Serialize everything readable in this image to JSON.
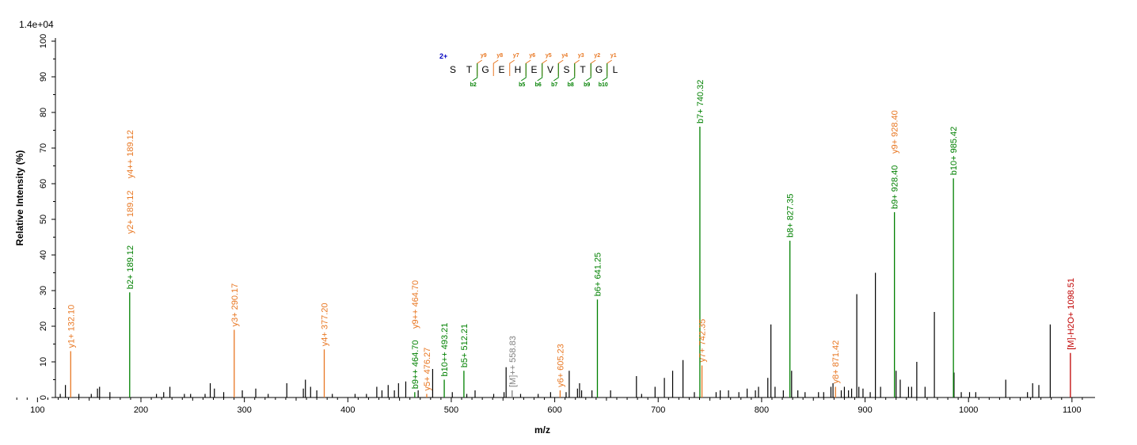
{
  "chart_data": {
    "type": "bar",
    "title": "",
    "scale_label": "1.4e+04",
    "xlabel": "m/z",
    "ylabel": "Relative   Intensity (%)",
    "xlim": [
      70,
      1120
    ],
    "ylim": [
      0,
      100
    ],
    "x_ticks": [
      100,
      200,
      300,
      400,
      500,
      600,
      700,
      800,
      900,
      1000,
      1100
    ],
    "y_ticks": [
      0,
      10,
      20,
      30,
      40,
      50,
      60,
      70,
      80,
      90,
      100
    ],
    "colors": {
      "b_ion": "#008000",
      "y_ion": "#e87722",
      "precursor": "#808080",
      "neutral_loss": "#c00000",
      "unassigned": "#000000",
      "charge": "#0000c0"
    },
    "annotated_peaks": [
      {
        "mz": 132.1,
        "intensity": 13,
        "label": "y1+ 132.10",
        "type": "y"
      },
      {
        "mz": 189.12,
        "intensity": 29.5,
        "label": "b2+ 189.12",
        "label2": "y2+ 189.12",
        "label3": "y4++ 189.12",
        "type": "b"
      },
      {
        "mz": 290.17,
        "intensity": 19,
        "label": "y3+ 290.17",
        "type": "y"
      },
      {
        "mz": 377.2,
        "intensity": 13.5,
        "label": "y4+ 377.20",
        "type": "y"
      },
      {
        "mz": 464.7,
        "intensity": 1.5,
        "label": "b9++ 464.70",
        "label2": "y9++ 464.70",
        "type": "b"
      },
      {
        "mz": 476.27,
        "intensity": 1,
        "label": "y5+ 476.27",
        "type": "y"
      },
      {
        "mz": 493.21,
        "intensity": 5,
        "label": "b10++ 493.21",
        "type": "b"
      },
      {
        "mz": 512.21,
        "intensity": 7.5,
        "label": "b5+ 512.21",
        "type": "b"
      },
      {
        "mz": 558.83,
        "intensity": 2,
        "label": "[M]++ 558.83",
        "type": "precursor"
      },
      {
        "mz": 605.23,
        "intensity": 2,
        "label": "y6+ 605.23",
        "type": "y"
      },
      {
        "mz": 641.25,
        "intensity": 27.5,
        "label": "b6+ 641.25",
        "type": "b"
      },
      {
        "mz": 740.32,
        "intensity": 76,
        "label": "b7+ 740.32",
        "type": "b"
      },
      {
        "mz": 742.35,
        "intensity": 9,
        "label": "y7+ 742.35",
        "type": "y"
      },
      {
        "mz": 827.35,
        "intensity": 44,
        "label": "b8+ 827.35",
        "type": "b"
      },
      {
        "mz": 871.42,
        "intensity": 3,
        "label": "y8+ 871.42",
        "type": "y"
      },
      {
        "mz": 928.4,
        "intensity": 52,
        "label": "b9+ 928.40",
        "label2": "y9+ 928.40",
        "type": "b"
      },
      {
        "mz": 985.42,
        "intensity": 61.5,
        "label": "b10+ 985.42",
        "type": "b"
      },
      {
        "mz": 1098.51,
        "intensity": 12.5,
        "label": "[M]-H2O+ 1098.51",
        "type": "neutral_loss"
      }
    ],
    "unassigned_peaks": [
      [
        122,
        1
      ],
      [
        127,
        3.5
      ],
      [
        140,
        1
      ],
      [
        152,
        1
      ],
      [
        158,
        2.5
      ],
      [
        160,
        3
      ],
      [
        170,
        1.5
      ],
      [
        215,
        1
      ],
      [
        222,
        1.5
      ],
      [
        228,
        3
      ],
      [
        242,
        1
      ],
      [
        248,
        1
      ],
      [
        262,
        1
      ],
      [
        267,
        4
      ],
      [
        271,
        2.5
      ],
      [
        280,
        1.5
      ],
      [
        298,
        2
      ],
      [
        311,
        2.5
      ],
      [
        323,
        1
      ],
      [
        341,
        4
      ],
      [
        357,
        2.5
      ],
      [
        359,
        5
      ],
      [
        364,
        3
      ],
      [
        370,
        2
      ],
      [
        385,
        1
      ],
      [
        407,
        1
      ],
      [
        418,
        1
      ],
      [
        428,
        3
      ],
      [
        433,
        2
      ],
      [
        439,
        3.5
      ],
      [
        445,
        2
      ],
      [
        449,
        4
      ],
      [
        456,
        4.5
      ],
      [
        468,
        2
      ],
      [
        482,
        8
      ],
      [
        501,
        1.5
      ],
      [
        515,
        1
      ],
      [
        523,
        2
      ],
      [
        541,
        1
      ],
      [
        551,
        1.5
      ],
      [
        553,
        8.5
      ],
      [
        567,
        1
      ],
      [
        584,
        1
      ],
      [
        596,
        1.5
      ],
      [
        611,
        1.5
      ],
      [
        614,
        7.5
      ],
      [
        622,
        2.5
      ],
      [
        624,
        4
      ],
      [
        626,
        2
      ],
      [
        636,
        2
      ],
      [
        654,
        2
      ],
      [
        679,
        6
      ],
      [
        684,
        1
      ],
      [
        697,
        3
      ],
      [
        706,
        5.5
      ],
      [
        714,
        7.5
      ],
      [
        724,
        10.5
      ],
      [
        735,
        1.5
      ],
      [
        756,
        1.5
      ],
      [
        760,
        2
      ],
      [
        768,
        2
      ],
      [
        778,
        1.5
      ],
      [
        786,
        2.5
      ],
      [
        794,
        2
      ],
      [
        797,
        3
      ],
      [
        806,
        5.5
      ],
      [
        809,
        20.5
      ],
      [
        813,
        3
      ],
      [
        821,
        2
      ],
      [
        829,
        7.5
      ],
      [
        835,
        2
      ],
      [
        842,
        1.5
      ],
      [
        855,
        1.5
      ],
      [
        860,
        1.5
      ],
      [
        867,
        3
      ],
      [
        869,
        4
      ],
      [
        877,
        2
      ],
      [
        880,
        3
      ],
      [
        884,
        2
      ],
      [
        887,
        2.5
      ],
      [
        892,
        29
      ],
      [
        894,
        3
      ],
      [
        898,
        2.5
      ],
      [
        905,
        1.5
      ],
      [
        910,
        35
      ],
      [
        915,
        3
      ],
      [
        930,
        7.5
      ],
      [
        934,
        5
      ],
      [
        942,
        3
      ],
      [
        945,
        3
      ],
      [
        950,
        10
      ],
      [
        958,
        3
      ],
      [
        967,
        24
      ],
      [
        986,
        7
      ],
      [
        993,
        1.5
      ],
      [
        1001,
        1.5
      ],
      [
        1007,
        1.5
      ],
      [
        1036,
        5
      ],
      [
        1057,
        1.5
      ],
      [
        1062,
        4
      ],
      [
        1068,
        3.5
      ],
      [
        1079,
        20.5
      ]
    ],
    "sequence": {
      "charge": "2+",
      "residues": [
        "S",
        "T",
        "G",
        "E",
        "H",
        "E",
        "V",
        "S",
        "T",
        "G",
        "L"
      ],
      "y_ions": [
        {
          "after": 2,
          "label": "y9"
        },
        {
          "after": 3,
          "label": "y8"
        },
        {
          "after": 4,
          "label": "y7"
        },
        {
          "after": 5,
          "label": "y6"
        },
        {
          "after": 6,
          "label": "y5"
        },
        {
          "after": 7,
          "label": "y4"
        },
        {
          "after": 8,
          "label": "y3"
        },
        {
          "after": 9,
          "label": "y2"
        },
        {
          "after": 10,
          "label": "y1"
        }
      ],
      "b_ions": [
        {
          "after": 2,
          "label": "b2"
        },
        {
          "after": 5,
          "label": "b5"
        },
        {
          "after": 6,
          "label": "b6"
        },
        {
          "after": 7,
          "label": "b7"
        },
        {
          "after": 8,
          "label": "b8"
        },
        {
          "after": 9,
          "label": "b9"
        },
        {
          "after": 10,
          "label": "b10"
        }
      ]
    }
  }
}
